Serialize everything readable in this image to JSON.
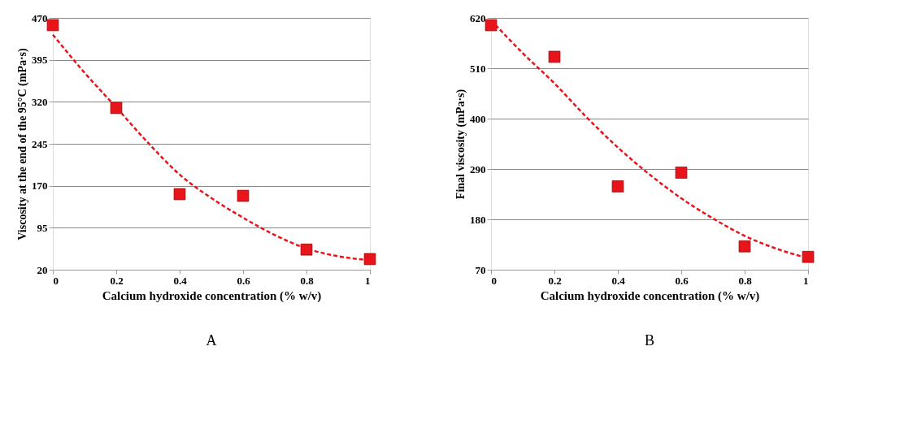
{
  "chart_data": [
    {
      "type": "scatter",
      "title": "A",
      "xlabel": "Calcium hydroxide concentration (% w/v)",
      "ylabel": "Viscosity at the end of the 95°C (mPa·s)",
      "x": [
        0,
        0.2,
        0.4,
        0.6,
        0.8,
        1
      ],
      "xlim": [
        0,
        1
      ],
      "xticks": [
        0,
        0.2,
        0.4,
        0.6,
        0.8,
        1
      ],
      "ylim": [
        20,
        470
      ],
      "yticks": [
        20,
        95,
        170,
        245,
        320,
        395,
        470
      ],
      "grid": "y",
      "series": [
        {
          "color": "#e8141c",
          "marker": "square",
          "values": [
            457,
            309,
            155,
            152,
            56,
            39
          ]
        },
        {
          "type": "line",
          "color": "#e8141c",
          "line_style": "dashed",
          "marker": "none",
          "x": [
            0,
            0.1,
            0.2,
            0.3,
            0.4,
            0.5,
            0.6,
            0.7,
            0.8,
            0.9,
            1
          ],
          "values": [
            440,
            372,
            310,
            247,
            190,
            148,
            113,
            82,
            58,
            44,
            37
          ]
        }
      ]
    },
    {
      "type": "scatter",
      "title": "B",
      "xlabel": "Calcium hydroxide concentration (% w/v)",
      "ylabel": "Final viscosity (mPa·s)",
      "x": [
        0,
        0.2,
        0.4,
        0.6,
        0.8,
        1
      ],
      "xlim": [
        0,
        1
      ],
      "xticks": [
        0,
        0.2,
        0.4,
        0.6,
        0.8,
        1
      ],
      "ylim": [
        70,
        620
      ],
      "yticks": [
        70,
        180,
        290,
        400,
        510,
        620
      ],
      "grid": "y",
      "series": [
        {
          "color": "#e8141c",
          "marker": "square",
          "values": [
            604,
            535,
            252,
            282,
            121,
            98
          ]
        },
        {
          "type": "line",
          "color": "#e8141c",
          "line_style": "dashed",
          "marker": "none",
          "x": [
            0,
            0.1,
            0.2,
            0.3,
            0.4,
            0.5,
            0.6,
            0.7,
            0.8,
            0.9,
            1
          ],
          "values": [
            615,
            543,
            477,
            404,
            337,
            278,
            226,
            182,
            144,
            116,
            95
          ]
        }
      ]
    }
  ]
}
